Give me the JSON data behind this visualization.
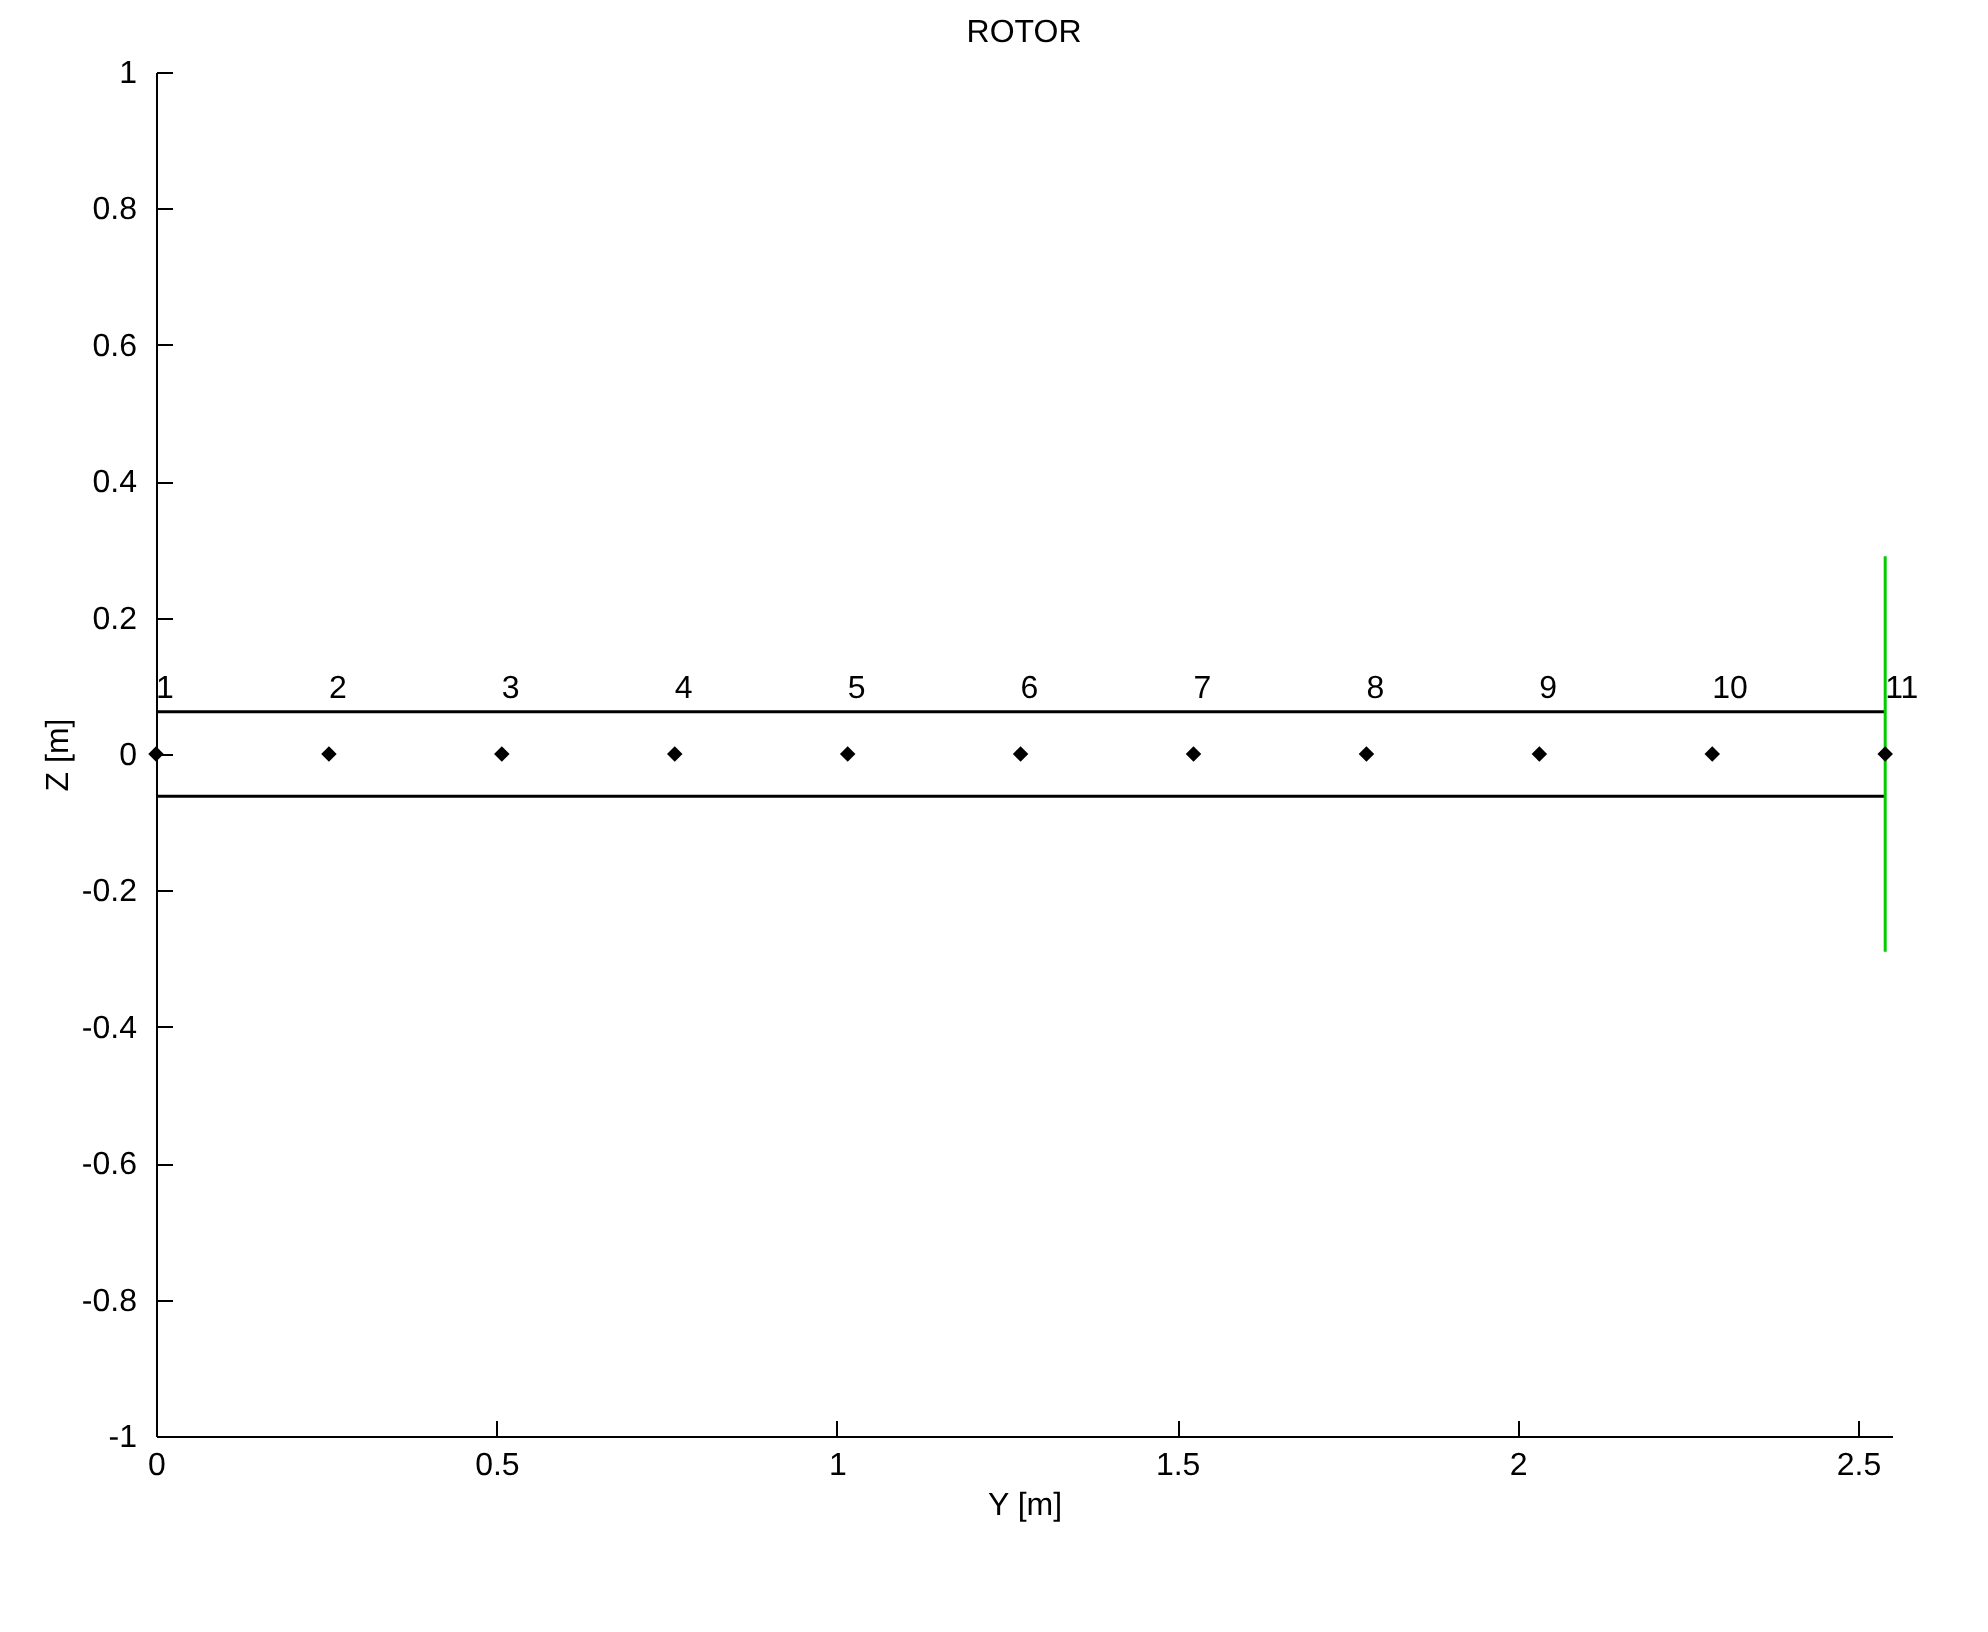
{
  "chart_data": {
    "type": "scatter",
    "title": "ROTOR",
    "xlabel": "Y [m]",
    "ylabel": "Z [m]",
    "xlim": [
      0,
      2.55
    ],
    "ylim": [
      -1,
      1
    ],
    "xticks": [
      0,
      0.5,
      1,
      1.5,
      2,
      2.5
    ],
    "yticks": [
      -1,
      -0.8,
      -0.6,
      -0.4,
      -0.2,
      0,
      0.2,
      0.4,
      0.6,
      0.8,
      1
    ],
    "marker": "diamond",
    "line_style": "solid",
    "series": [
      {
        "type": "line",
        "marker": "none",
        "color": "#000000",
        "x": [
          0,
          2.54
        ],
        "values": [
          0.062,
          0.062
        ]
      },
      {
        "type": "line",
        "marker": "none",
        "color": "#000000",
        "x": [
          0,
          2.54
        ],
        "values": [
          -0.062,
          -0.062
        ]
      },
      {
        "type": "line",
        "marker": "none",
        "color": "#00cc00",
        "x": [
          2.54,
          2.54
        ],
        "values": [
          -0.29,
          0.29
        ]
      },
      {
        "color": "#000000",
        "x": [
          0,
          0.254,
          0.508,
          0.762,
          1.016,
          1.27,
          1.524,
          1.778,
          2.032,
          2.286,
          2.54
        ],
        "values": [
          0,
          0,
          0,
          0,
          0,
          0,
          0,
          0,
          0,
          0,
          0
        ]
      }
    ],
    "annotations": [
      {
        "text": "1",
        "x": 0,
        "y": 0
      },
      {
        "text": "2",
        "x": 0.254,
        "y": 0
      },
      {
        "text": "3",
        "x": 0.508,
        "y": 0
      },
      {
        "text": "4",
        "x": 0.762,
        "y": 0
      },
      {
        "text": "5",
        "x": 1.016,
        "y": 0
      },
      {
        "text": "6",
        "x": 1.27,
        "y": 0
      },
      {
        "text": "7",
        "x": 1.524,
        "y": 0
      },
      {
        "text": "8",
        "x": 1.778,
        "y": 0
      },
      {
        "text": "9",
        "x": 2.032,
        "y": 0
      },
      {
        "text": "10",
        "x": 2.286,
        "y": 0
      },
      {
        "text": "11",
        "x": 2.54,
        "y": 0
      }
    ]
  }
}
